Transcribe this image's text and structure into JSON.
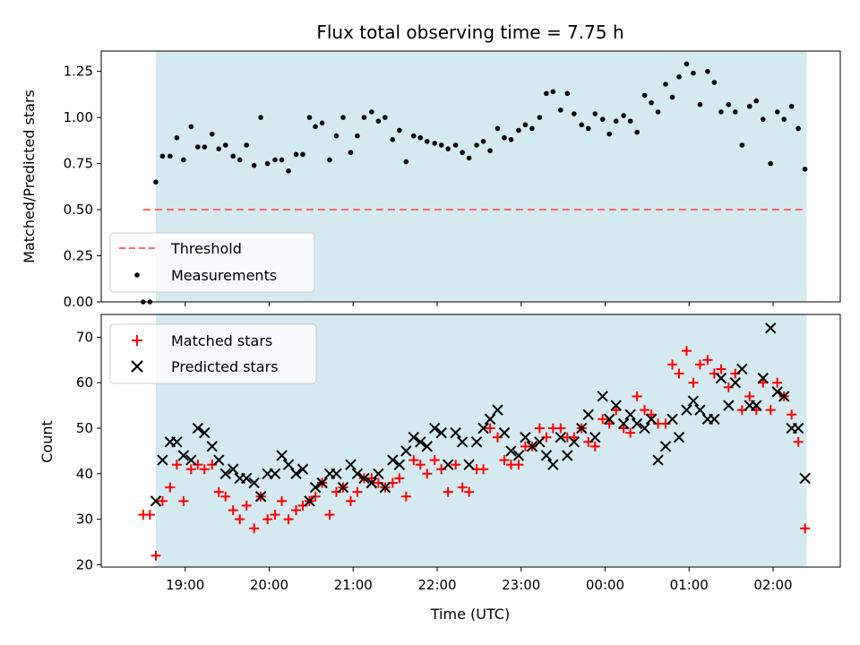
{
  "chart_data": {
    "type": "scatter",
    "title": "Flux total observing time = 7.75 h",
    "xlabel": "Time (UTC)",
    "x_ticks": [
      "19:00",
      "20:00",
      "21:00",
      "22:00",
      "23:00",
      "00:00",
      "01:00",
      "02:00"
    ],
    "observing_window": {
      "start": 18.65,
      "end": 26.4,
      "color": "#d4eaf0"
    },
    "top": {
      "ylabel": "Matched/Predicted stars",
      "ylim": [
        0,
        1.36
      ],
      "yticks": [
        "0.00",
        "0.25",
        "0.50",
        "0.75",
        "1.00",
        "1.25"
      ],
      "ytick_values": [
        0,
        0.25,
        0.5,
        0.75,
        1.0,
        1.25
      ],
      "legend": [
        {
          "name": "Threshold",
          "color": "#ff6666"
        },
        {
          "name": "Measurements",
          "color": "#000000"
        }
      ],
      "threshold": {
        "value": 0.5,
        "x_start": 18.5,
        "x_end": 26.4
      },
      "measurements": [
        [
          18.5,
          0.0
        ],
        [
          18.58,
          0.0
        ],
        [
          18.65,
          0.65
        ],
        [
          18.73,
          0.79
        ],
        [
          18.82,
          0.79
        ],
        [
          18.9,
          0.89
        ],
        [
          18.98,
          0.77
        ],
        [
          19.07,
          0.95
        ],
        [
          19.15,
          0.84
        ],
        [
          19.23,
          0.84
        ],
        [
          19.32,
          0.91
        ],
        [
          19.4,
          0.83
        ],
        [
          19.48,
          0.85
        ],
        [
          19.57,
          0.79
        ],
        [
          19.65,
          0.77
        ],
        [
          19.73,
          0.85
        ],
        [
          19.82,
          0.74
        ],
        [
          19.9,
          1.0
        ],
        [
          19.98,
          0.75
        ],
        [
          20.07,
          0.77
        ],
        [
          20.15,
          0.77
        ],
        [
          20.23,
          0.71
        ],
        [
          20.32,
          0.8
        ],
        [
          20.4,
          0.8
        ],
        [
          20.48,
          1.0
        ],
        [
          20.55,
          0.95
        ],
        [
          20.63,
          0.97
        ],
        [
          20.72,
          0.77
        ],
        [
          20.8,
          0.9
        ],
        [
          20.88,
          1.0
        ],
        [
          20.97,
          0.81
        ],
        [
          21.05,
          0.9
        ],
        [
          21.13,
          1.0
        ],
        [
          21.22,
          1.03
        ],
        [
          21.3,
          0.98
        ],
        [
          21.38,
          1.0
        ],
        [
          21.47,
          0.88
        ],
        [
          21.55,
          0.93
        ],
        [
          21.63,
          0.76
        ],
        [
          21.72,
          0.9
        ],
        [
          21.8,
          0.89
        ],
        [
          21.88,
          0.87
        ],
        [
          21.97,
          0.86
        ],
        [
          22.05,
          0.85
        ],
        [
          22.13,
          0.83
        ],
        [
          22.22,
          0.85
        ],
        [
          22.3,
          0.81
        ],
        [
          22.38,
          0.78
        ],
        [
          22.47,
          0.85
        ],
        [
          22.55,
          0.87
        ],
        [
          22.63,
          0.82
        ],
        [
          22.72,
          0.94
        ],
        [
          22.8,
          0.89
        ],
        [
          22.88,
          0.88
        ],
        [
          22.97,
          0.93
        ],
        [
          23.05,
          0.96
        ],
        [
          23.13,
          0.94
        ],
        [
          23.22,
          1.0
        ],
        [
          23.3,
          1.13
        ],
        [
          23.38,
          1.14
        ],
        [
          23.47,
          1.04
        ],
        [
          23.55,
          1.13
        ],
        [
          23.63,
          1.02
        ],
        [
          23.72,
          0.96
        ],
        [
          23.8,
          0.94
        ],
        [
          23.88,
          1.02
        ],
        [
          23.97,
          0.99
        ],
        [
          24.05,
          0.91
        ],
        [
          24.13,
          0.98
        ],
        [
          24.22,
          1.01
        ],
        [
          24.3,
          0.98
        ],
        [
          24.38,
          0.92
        ],
        [
          24.47,
          1.12
        ],
        [
          24.55,
          1.08
        ],
        [
          24.63,
          1.03
        ],
        [
          24.72,
          1.18
        ],
        [
          24.8,
          1.11
        ],
        [
          24.88,
          1.22
        ],
        [
          24.97,
          1.29
        ],
        [
          25.05,
          1.24
        ],
        [
          25.13,
          1.07
        ],
        [
          25.22,
          1.25
        ],
        [
          25.3,
          1.19
        ],
        [
          25.38,
          1.03
        ],
        [
          25.47,
          1.07
        ],
        [
          25.55,
          1.03
        ],
        [
          25.63,
          0.85
        ],
        [
          25.72,
          1.06
        ],
        [
          25.8,
          1.09
        ],
        [
          25.88,
          0.99
        ],
        [
          25.97,
          0.75
        ],
        [
          26.05,
          1.03
        ],
        [
          26.13,
          0.99
        ],
        [
          26.22,
          1.06
        ],
        [
          26.3,
          0.94
        ],
        [
          26.38,
          0.72
        ]
      ]
    },
    "bottom": {
      "ylabel": "Count",
      "ylim": [
        19.5,
        75
      ],
      "yticks": [
        "20",
        "30",
        "40",
        "50",
        "60",
        "70"
      ],
      "ytick_values": [
        20,
        30,
        40,
        50,
        60,
        70
      ],
      "legend": [
        {
          "name": "Matched stars",
          "color": "#ff0000"
        },
        {
          "name": "Predicted stars",
          "color": "#000000"
        }
      ],
      "matched": [
        [
          18.5,
          31
        ],
        [
          18.58,
          31
        ],
        [
          18.65,
          22
        ],
        [
          18.73,
          34
        ],
        [
          18.82,
          37
        ],
        [
          18.9,
          42
        ],
        [
          18.98,
          34
        ],
        [
          19.07,
          41
        ],
        [
          19.15,
          42
        ],
        [
          19.23,
          41
        ],
        [
          19.32,
          42
        ],
        [
          19.4,
          36
        ],
        [
          19.48,
          35
        ],
        [
          19.57,
          32
        ],
        [
          19.65,
          30
        ],
        [
          19.73,
          33
        ],
        [
          19.82,
          28
        ],
        [
          19.9,
          35
        ],
        [
          19.98,
          30
        ],
        [
          20.07,
          31
        ],
        [
          20.15,
          34
        ],
        [
          20.23,
          30
        ],
        [
          20.32,
          32
        ],
        [
          20.4,
          33
        ],
        [
          20.48,
          34
        ],
        [
          20.55,
          35
        ],
        [
          20.63,
          38
        ],
        [
          20.72,
          31
        ],
        [
          20.8,
          36
        ],
        [
          20.88,
          37
        ],
        [
          20.97,
          34
        ],
        [
          21.05,
          36
        ],
        [
          21.13,
          39
        ],
        [
          21.22,
          39
        ],
        [
          21.3,
          38
        ],
        [
          21.38,
          37
        ],
        [
          21.47,
          38
        ],
        [
          21.55,
          39
        ],
        [
          21.63,
          35
        ],
        [
          21.72,
          43
        ],
        [
          21.8,
          42
        ],
        [
          21.88,
          40
        ],
        [
          21.97,
          43
        ],
        [
          22.05,
          41
        ],
        [
          22.13,
          36
        ],
        [
          22.22,
          42
        ],
        [
          22.3,
          37
        ],
        [
          22.38,
          36
        ],
        [
          22.47,
          41
        ],
        [
          22.55,
          41
        ],
        [
          22.63,
          50
        ],
        [
          22.72,
          48
        ],
        [
          22.8,
          43
        ],
        [
          22.88,
          42
        ],
        [
          22.97,
          42
        ],
        [
          23.05,
          46
        ],
        [
          23.13,
          46
        ],
        [
          23.22,
          50
        ],
        [
          23.3,
          48
        ],
        [
          23.38,
          50
        ],
        [
          23.47,
          50
        ],
        [
          23.55,
          48
        ],
        [
          23.63,
          48
        ],
        [
          23.72,
          50
        ],
        [
          23.8,
          47
        ],
        [
          23.88,
          46
        ],
        [
          23.97,
          52
        ],
        [
          24.05,
          51
        ],
        [
          24.13,
          54
        ],
        [
          24.22,
          50
        ],
        [
          24.3,
          49
        ],
        [
          24.38,
          57
        ],
        [
          24.47,
          54
        ],
        [
          24.55,
          53
        ],
        [
          24.63,
          51
        ],
        [
          24.72,
          51
        ],
        [
          24.8,
          64
        ],
        [
          24.88,
          62
        ],
        [
          24.97,
          67
        ],
        [
          25.05,
          60
        ],
        [
          25.13,
          64
        ],
        [
          25.22,
          65
        ],
        [
          25.3,
          62
        ],
        [
          25.38,
          63
        ],
        [
          25.47,
          59
        ],
        [
          25.55,
          62
        ],
        [
          25.63,
          54
        ],
        [
          25.72,
          57
        ],
        [
          25.8,
          54
        ],
        [
          25.88,
          60
        ],
        [
          25.97,
          54
        ],
        [
          26.05,
          60
        ],
        [
          26.13,
          57
        ],
        [
          26.22,
          53
        ],
        [
          26.3,
          47
        ],
        [
          26.38,
          28
        ]
      ],
      "predicted": [
        [
          18.65,
          34
        ],
        [
          18.73,
          43
        ],
        [
          18.82,
          47
        ],
        [
          18.9,
          47
        ],
        [
          18.98,
          44
        ],
        [
          19.07,
          43
        ],
        [
          19.15,
          50
        ],
        [
          19.23,
          49
        ],
        [
          19.32,
          46
        ],
        [
          19.4,
          43
        ],
        [
          19.48,
          40
        ],
        [
          19.57,
          41
        ],
        [
          19.65,
          39
        ],
        [
          19.73,
          39
        ],
        [
          19.82,
          38
        ],
        [
          19.9,
          35
        ],
        [
          19.98,
          40
        ],
        [
          20.07,
          40
        ],
        [
          20.15,
          44
        ],
        [
          20.23,
          42
        ],
        [
          20.32,
          40
        ],
        [
          20.4,
          41
        ],
        [
          20.48,
          34
        ],
        [
          20.55,
          37
        ],
        [
          20.63,
          38
        ],
        [
          20.72,
          40
        ],
        [
          20.8,
          40
        ],
        [
          20.88,
          37
        ],
        [
          20.97,
          42
        ],
        [
          21.05,
          40
        ],
        [
          21.13,
          39
        ],
        [
          21.22,
          38
        ],
        [
          21.3,
          40
        ],
        [
          21.38,
          37
        ],
        [
          21.47,
          43
        ],
        [
          21.55,
          42
        ],
        [
          21.63,
          45
        ],
        [
          21.72,
          48
        ],
        [
          21.8,
          47
        ],
        [
          21.88,
          46
        ],
        [
          21.97,
          50
        ],
        [
          22.05,
          49
        ],
        [
          22.13,
          42
        ],
        [
          22.22,
          49
        ],
        [
          22.3,
          47
        ],
        [
          22.38,
          42
        ],
        [
          22.47,
          47
        ],
        [
          22.55,
          50
        ],
        [
          22.63,
          52
        ],
        [
          22.72,
          54
        ],
        [
          22.8,
          49
        ],
        [
          22.88,
          45
        ],
        [
          22.97,
          44
        ],
        [
          23.05,
          48
        ],
        [
          23.13,
          46
        ],
        [
          23.22,
          47
        ],
        [
          23.3,
          44
        ],
        [
          23.38,
          42
        ],
        [
          23.47,
          48
        ],
        [
          23.55,
          44
        ],
        [
          23.63,
          47
        ],
        [
          23.72,
          50
        ],
        [
          23.8,
          53
        ],
        [
          23.88,
          48
        ],
        [
          23.97,
          57
        ],
        [
          24.05,
          52
        ],
        [
          24.13,
          55
        ],
        [
          24.22,
          51
        ],
        [
          24.3,
          53
        ],
        [
          24.38,
          51
        ],
        [
          24.47,
          50
        ],
        [
          24.55,
          52
        ],
        [
          24.63,
          43
        ],
        [
          24.72,
          46
        ],
        [
          24.8,
          52
        ],
        [
          24.88,
          48
        ],
        [
          24.97,
          54
        ],
        [
          25.05,
          56
        ],
        [
          25.13,
          54
        ],
        [
          25.22,
          52
        ],
        [
          25.3,
          52
        ],
        [
          25.38,
          61
        ],
        [
          25.47,
          55
        ],
        [
          25.55,
          60
        ],
        [
          25.63,
          63
        ],
        [
          25.72,
          55
        ],
        [
          25.8,
          55
        ],
        [
          25.88,
          61
        ],
        [
          25.97,
          72
        ],
        [
          26.05,
          58
        ],
        [
          26.13,
          57
        ],
        [
          26.22,
          50
        ],
        [
          26.3,
          50
        ],
        [
          26.38,
          39
        ]
      ]
    }
  }
}
